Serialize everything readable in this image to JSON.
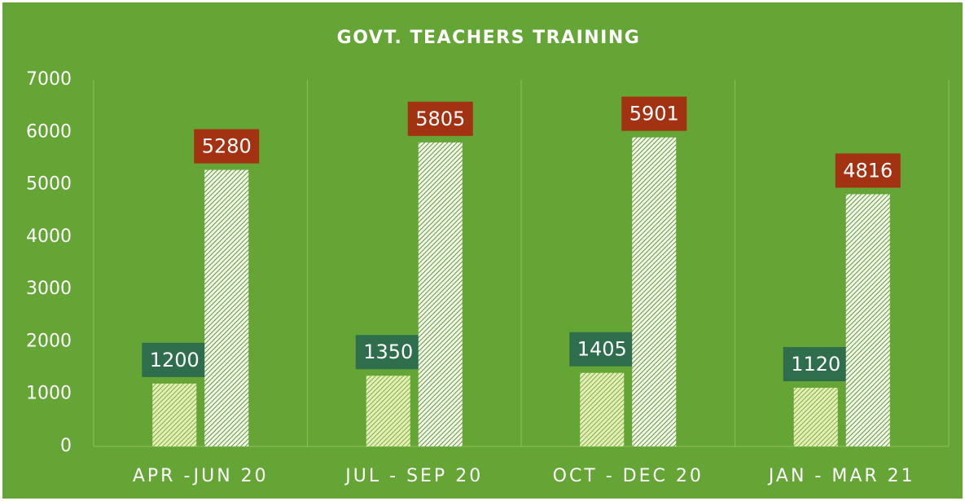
{
  "chart_data": {
    "type": "bar",
    "title": "GOVT. TEACHERS TRAINING",
    "categories": [
      "APR -JUN 20",
      "JUL - SEP 20",
      "OCT - DEC 20",
      "JAN - MAR 21"
    ],
    "series": [
      {
        "color": "#2e6e4c",
        "values": [
          1200,
          1350,
          1405,
          1120
        ]
      },
      {
        "color": "#a33212",
        "values": [
          5280,
          5805,
          5901,
          4816
        ]
      }
    ],
    "ylim": [
      0,
      7000
    ],
    "yticks": [
      0,
      1000,
      2000,
      3000,
      4000,
      5000,
      6000,
      7000
    ],
    "grid": true
  }
}
